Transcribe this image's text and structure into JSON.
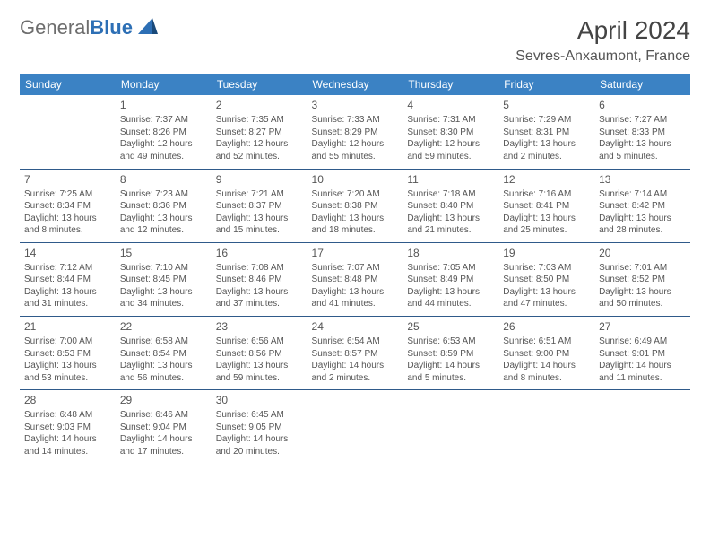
{
  "logo": {
    "part1": "General",
    "part2": "Blue"
  },
  "title": "April 2024",
  "location": "Sevres-Anxaumont, France",
  "colors": {
    "header_bg": "#3b82c4",
    "header_fg": "#ffffff",
    "row_border": "#2f5a8a",
    "text": "#555555",
    "logo_gray": "#6d6d6d",
    "logo_blue": "#2d6fb5"
  },
  "typography": {
    "title_fontsize": 28,
    "location_fontsize": 16,
    "header_fontsize": 12,
    "cell_fontsize": 10,
    "daynum_fontsize": 12
  },
  "day_headers": [
    "Sunday",
    "Monday",
    "Tuesday",
    "Wednesday",
    "Thursday",
    "Friday",
    "Saturday"
  ],
  "weeks": [
    [
      null,
      {
        "n": "1",
        "sunrise": "7:37 AM",
        "sunset": "8:26 PM",
        "daylight": "12 hours and 49 minutes."
      },
      {
        "n": "2",
        "sunrise": "7:35 AM",
        "sunset": "8:27 PM",
        "daylight": "12 hours and 52 minutes."
      },
      {
        "n": "3",
        "sunrise": "7:33 AM",
        "sunset": "8:29 PM",
        "daylight": "12 hours and 55 minutes."
      },
      {
        "n": "4",
        "sunrise": "7:31 AM",
        "sunset": "8:30 PM",
        "daylight": "12 hours and 59 minutes."
      },
      {
        "n": "5",
        "sunrise": "7:29 AM",
        "sunset": "8:31 PM",
        "daylight": "13 hours and 2 minutes."
      },
      {
        "n": "6",
        "sunrise": "7:27 AM",
        "sunset": "8:33 PM",
        "daylight": "13 hours and 5 minutes."
      }
    ],
    [
      {
        "n": "7",
        "sunrise": "7:25 AM",
        "sunset": "8:34 PM",
        "daylight": "13 hours and 8 minutes."
      },
      {
        "n": "8",
        "sunrise": "7:23 AM",
        "sunset": "8:36 PM",
        "daylight": "13 hours and 12 minutes."
      },
      {
        "n": "9",
        "sunrise": "7:21 AM",
        "sunset": "8:37 PM",
        "daylight": "13 hours and 15 minutes."
      },
      {
        "n": "10",
        "sunrise": "7:20 AM",
        "sunset": "8:38 PM",
        "daylight": "13 hours and 18 minutes."
      },
      {
        "n": "11",
        "sunrise": "7:18 AM",
        "sunset": "8:40 PM",
        "daylight": "13 hours and 21 minutes."
      },
      {
        "n": "12",
        "sunrise": "7:16 AM",
        "sunset": "8:41 PM",
        "daylight": "13 hours and 25 minutes."
      },
      {
        "n": "13",
        "sunrise": "7:14 AM",
        "sunset": "8:42 PM",
        "daylight": "13 hours and 28 minutes."
      }
    ],
    [
      {
        "n": "14",
        "sunrise": "7:12 AM",
        "sunset": "8:44 PM",
        "daylight": "13 hours and 31 minutes."
      },
      {
        "n": "15",
        "sunrise": "7:10 AM",
        "sunset": "8:45 PM",
        "daylight": "13 hours and 34 minutes."
      },
      {
        "n": "16",
        "sunrise": "7:08 AM",
        "sunset": "8:46 PM",
        "daylight": "13 hours and 37 minutes."
      },
      {
        "n": "17",
        "sunrise": "7:07 AM",
        "sunset": "8:48 PM",
        "daylight": "13 hours and 41 minutes."
      },
      {
        "n": "18",
        "sunrise": "7:05 AM",
        "sunset": "8:49 PM",
        "daylight": "13 hours and 44 minutes."
      },
      {
        "n": "19",
        "sunrise": "7:03 AM",
        "sunset": "8:50 PM",
        "daylight": "13 hours and 47 minutes."
      },
      {
        "n": "20",
        "sunrise": "7:01 AM",
        "sunset": "8:52 PM",
        "daylight": "13 hours and 50 minutes."
      }
    ],
    [
      {
        "n": "21",
        "sunrise": "7:00 AM",
        "sunset": "8:53 PM",
        "daylight": "13 hours and 53 minutes."
      },
      {
        "n": "22",
        "sunrise": "6:58 AM",
        "sunset": "8:54 PM",
        "daylight": "13 hours and 56 minutes."
      },
      {
        "n": "23",
        "sunrise": "6:56 AM",
        "sunset": "8:56 PM",
        "daylight": "13 hours and 59 minutes."
      },
      {
        "n": "24",
        "sunrise": "6:54 AM",
        "sunset": "8:57 PM",
        "daylight": "14 hours and 2 minutes."
      },
      {
        "n": "25",
        "sunrise": "6:53 AM",
        "sunset": "8:59 PM",
        "daylight": "14 hours and 5 minutes."
      },
      {
        "n": "26",
        "sunrise": "6:51 AM",
        "sunset": "9:00 PM",
        "daylight": "14 hours and 8 minutes."
      },
      {
        "n": "27",
        "sunrise": "6:49 AM",
        "sunset": "9:01 PM",
        "daylight": "14 hours and 11 minutes."
      }
    ],
    [
      {
        "n": "28",
        "sunrise": "6:48 AM",
        "sunset": "9:03 PM",
        "daylight": "14 hours and 14 minutes."
      },
      {
        "n": "29",
        "sunrise": "6:46 AM",
        "sunset": "9:04 PM",
        "daylight": "14 hours and 17 minutes."
      },
      {
        "n": "30",
        "sunrise": "6:45 AM",
        "sunset": "9:05 PM",
        "daylight": "14 hours and 20 minutes."
      },
      null,
      null,
      null,
      null
    ]
  ],
  "labels": {
    "sunrise": "Sunrise:",
    "sunset": "Sunset:",
    "daylight": "Daylight:"
  }
}
